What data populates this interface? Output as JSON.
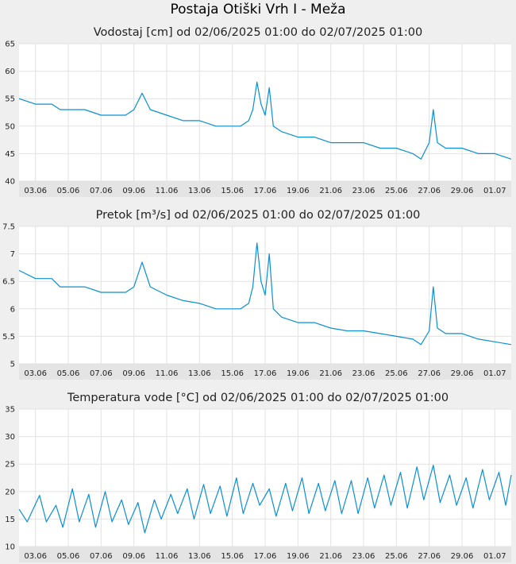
{
  "title": "Postaja Otiški Vrh I - Meža",
  "colors": {
    "line": "#0a8fd6",
    "plot_bg": "#ffffff",
    "page_bg": "#efefef",
    "axis_bg": "#e4e4e4",
    "grid": "#e2e2e2"
  },
  "chart_data": [
    {
      "type": "line",
      "title": "Vodostaj [cm] od 02/06/2025 01:00 do 02/07/2025 01:00",
      "ylim": [
        40,
        65
      ],
      "yticks": [
        40,
        45,
        50,
        55,
        60,
        65
      ],
      "xlim": [
        "2025-06-02",
        "2025-07-02"
      ],
      "xticks": [
        "03.06",
        "05.06",
        "07.06",
        "09.06",
        "11.06",
        "13.06",
        "15.06",
        "17.06",
        "19.06",
        "21.06",
        "23.06",
        "25.06",
        "27.06",
        "29.06",
        "01.07"
      ],
      "grid": true,
      "series": [
        {
          "x": [
            "2025-06-02",
            "2025-06-03",
            "2025-06-04",
            "2025-06-04 12:00",
            "2025-06-05",
            "2025-06-06",
            "2025-06-07",
            "2025-06-08",
            "2025-06-08 12:00",
            "2025-06-09",
            "2025-06-09 12:00",
            "2025-06-10",
            "2025-06-11",
            "2025-06-12",
            "2025-06-13",
            "2025-06-14",
            "2025-06-15",
            "2025-06-15 12:00",
            "2025-06-16",
            "2025-06-16 06:00",
            "2025-06-16 12:00",
            "2025-06-16 18:00",
            "2025-06-17",
            "2025-06-17 06:00",
            "2025-06-17 12:00",
            "2025-06-18",
            "2025-06-19",
            "2025-06-20",
            "2025-06-21",
            "2025-06-22",
            "2025-06-23",
            "2025-06-24",
            "2025-06-25",
            "2025-06-26",
            "2025-06-26 12:00",
            "2025-06-27",
            "2025-06-27 06:00",
            "2025-06-27 12:00",
            "2025-06-28",
            "2025-06-29",
            "2025-06-30",
            "2025-07-01",
            "2025-07-02"
          ],
          "y": [
            55,
            54,
            54,
            53,
            53,
            53,
            52,
            52,
            52,
            53,
            56,
            53,
            52,
            51,
            51,
            50,
            50,
            50,
            51,
            53,
            58,
            54,
            52,
            57,
            50,
            49,
            48,
            48,
            47,
            47,
            47,
            46,
            46,
            45,
            44,
            47,
            53,
            47,
            46,
            46,
            45,
            45,
            44
          ]
        }
      ]
    },
    {
      "type": "line",
      "title": "Pretok [m³/s] od 02/06/2025 01:00 do 02/07/2025 01:00",
      "ylim": [
        5,
        7.5
      ],
      "yticks": [
        5,
        5.5,
        6,
        6.5,
        7,
        7.5
      ],
      "xlim": [
        "2025-06-02",
        "2025-07-02"
      ],
      "xticks": [
        "03.06",
        "05.06",
        "07.06",
        "09.06",
        "11.06",
        "13.06",
        "15.06",
        "17.06",
        "19.06",
        "21.06",
        "23.06",
        "25.06",
        "27.06",
        "29.06",
        "01.07"
      ],
      "grid": true,
      "series": [
        {
          "x": [
            "2025-06-02",
            "2025-06-03",
            "2025-06-04",
            "2025-06-04 12:00",
            "2025-06-05",
            "2025-06-06",
            "2025-06-07",
            "2025-06-08",
            "2025-06-08 12:00",
            "2025-06-09",
            "2025-06-09 12:00",
            "2025-06-10",
            "2025-06-11",
            "2025-06-12",
            "2025-06-13",
            "2025-06-14",
            "2025-06-15",
            "2025-06-15 12:00",
            "2025-06-16",
            "2025-06-16 06:00",
            "2025-06-16 12:00",
            "2025-06-16 18:00",
            "2025-06-17",
            "2025-06-17 06:00",
            "2025-06-17 12:00",
            "2025-06-18",
            "2025-06-19",
            "2025-06-20",
            "2025-06-21",
            "2025-06-22",
            "2025-06-23",
            "2025-06-24",
            "2025-06-25",
            "2025-06-26",
            "2025-06-26 12:00",
            "2025-06-27",
            "2025-06-27 06:00",
            "2025-06-27 12:00",
            "2025-06-28",
            "2025-06-29",
            "2025-06-30",
            "2025-07-01",
            "2025-07-02"
          ],
          "y": [
            6.7,
            6.55,
            6.55,
            6.4,
            6.4,
            6.4,
            6.3,
            6.3,
            6.3,
            6.4,
            6.85,
            6.4,
            6.25,
            6.15,
            6.1,
            6.0,
            6.0,
            6.0,
            6.1,
            6.4,
            7.2,
            6.5,
            6.25,
            7.0,
            6.0,
            5.85,
            5.75,
            5.75,
            5.65,
            5.6,
            5.6,
            5.55,
            5.5,
            5.45,
            5.35,
            5.6,
            6.4,
            5.65,
            5.55,
            5.55,
            5.45,
            5.4,
            5.35
          ]
        }
      ]
    },
    {
      "type": "line",
      "title": "Temperatura vode [°C] od 02/06/2025 01:00 do 02/07/2025 01:00",
      "ylim": [
        10,
        35
      ],
      "yticks": [
        10,
        15,
        20,
        25,
        30,
        35
      ],
      "xlim": [
        "2025-06-02",
        "2025-07-02"
      ],
      "xticks": [
        "03.06",
        "05.06",
        "07.06",
        "09.06",
        "11.06",
        "13.06",
        "15.06",
        "17.06",
        "19.06",
        "21.06",
        "23.06",
        "25.06",
        "27.06",
        "29.06",
        "01.07"
      ],
      "grid": true,
      "series": [
        {
          "x": [
            "2025-06-02",
            "2025-06-02 12:00",
            "2025-06-03 06:00",
            "2025-06-03 16:00",
            "2025-06-04 06:00",
            "2025-06-04 16:00",
            "2025-06-05 06:00",
            "2025-06-05 16:00",
            "2025-06-06 06:00",
            "2025-06-06 16:00",
            "2025-06-07 06:00",
            "2025-06-07 16:00",
            "2025-06-08 06:00",
            "2025-06-08 16:00",
            "2025-06-09 06:00",
            "2025-06-09 16:00",
            "2025-06-10 06:00",
            "2025-06-10 16:00",
            "2025-06-11 06:00",
            "2025-06-11 16:00",
            "2025-06-12 06:00",
            "2025-06-12 16:00",
            "2025-06-13 06:00",
            "2025-06-13 16:00",
            "2025-06-14 06:00",
            "2025-06-14 16:00",
            "2025-06-15 06:00",
            "2025-06-15 16:00",
            "2025-06-16 06:00",
            "2025-06-16 16:00",
            "2025-06-17 06:00",
            "2025-06-17 16:00",
            "2025-06-18 06:00",
            "2025-06-18 16:00",
            "2025-06-19 06:00",
            "2025-06-19 16:00",
            "2025-06-20 06:00",
            "2025-06-20 16:00",
            "2025-06-21 06:00",
            "2025-06-21 16:00",
            "2025-06-22 06:00",
            "2025-06-22 16:00",
            "2025-06-23 06:00",
            "2025-06-23 16:00",
            "2025-06-24 06:00",
            "2025-06-24 16:00",
            "2025-06-25 06:00",
            "2025-06-25 16:00",
            "2025-06-26 06:00",
            "2025-06-26 16:00",
            "2025-06-27 06:00",
            "2025-06-27 16:00",
            "2025-06-28 06:00",
            "2025-06-28 16:00",
            "2025-06-29 06:00",
            "2025-06-29 16:00",
            "2025-06-30 06:00",
            "2025-06-30 16:00",
            "2025-07-01 06:00",
            "2025-07-01 16:00",
            "2025-07-02"
          ],
          "y": [
            16.8,
            14.5,
            19.3,
            14.5,
            17.5,
            13.5,
            20.5,
            14.5,
            19.5,
            13.5,
            20.0,
            14.5,
            18.5,
            14.0,
            18.0,
            12.5,
            18.5,
            15.0,
            19.5,
            16.0,
            20.5,
            15.0,
            21.3,
            16.0,
            21.0,
            15.5,
            22.5,
            16.0,
            21.5,
            17.5,
            20.5,
            15.5,
            21.5,
            16.5,
            22.5,
            16.0,
            21.5,
            16.5,
            22.0,
            16.0,
            22.0,
            16.0,
            22.5,
            17.0,
            23.0,
            17.5,
            23.5,
            17.0,
            24.5,
            18.5,
            24.8,
            18.0,
            23.0,
            17.5,
            22.5,
            17.0,
            24.0,
            18.5,
            23.5,
            17.5,
            23.0
          ]
        }
      ]
    }
  ]
}
